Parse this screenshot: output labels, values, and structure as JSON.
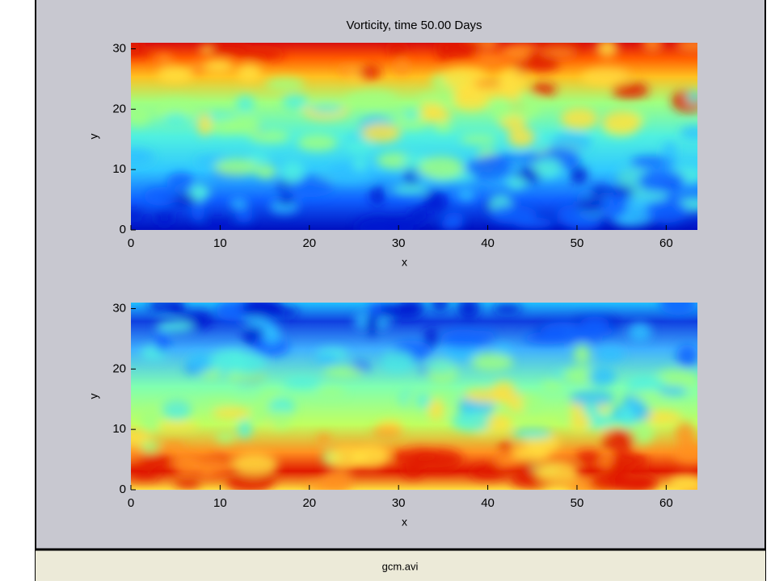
{
  "chart_data": [
    {
      "type": "heatmap",
      "title": "Vorticity, time 50.00 Days",
      "xlabel": "x",
      "ylabel": "y",
      "xlim": [
        0,
        63.5
      ],
      "ylim": [
        0,
        31
      ],
      "xticks": [
        0,
        10,
        20,
        30,
        40,
        50,
        60
      ],
      "yticks": [
        0,
        10,
        20,
        30
      ]
    },
    {
      "type": "heatmap",
      "xlabel": "x",
      "ylabel": "y",
      "xlim": [
        0,
        63.5
      ],
      "ylim": [
        0,
        31
      ],
      "xticks": [
        0,
        10,
        20,
        30,
        40,
        50,
        60
      ],
      "yticks": [
        0,
        10,
        20,
        30
      ]
    }
  ],
  "window": {
    "footer": "gcm.avi"
  }
}
